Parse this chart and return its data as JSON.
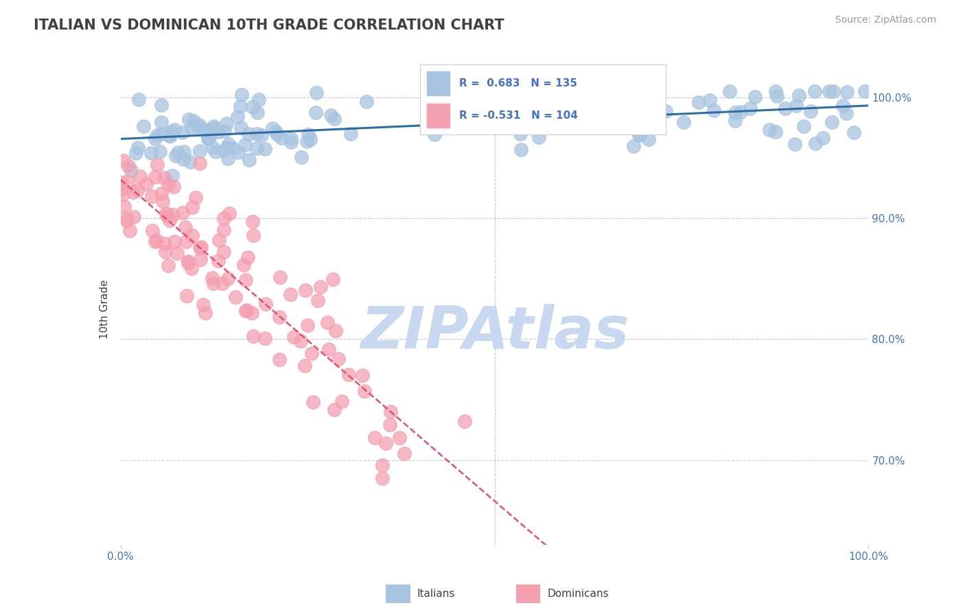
{
  "title": "ITALIAN VS DOMINICAN 10TH GRADE CORRELATION CHART",
  "source_text": "Source: ZipAtlas.com",
  "ylabel": "10th Grade",
  "italian_R": 0.683,
  "italian_N": 135,
  "dominican_R": -0.531,
  "dominican_N": 104,
  "italian_color": "#a8c4e0",
  "italian_line_color": "#2e6da4",
  "dominican_color": "#f4a0b0",
  "dominican_line_color": "#e05070",
  "background_color": "#ffffff",
  "title_color": "#404040",
  "axis_label_color": "#4472c4",
  "grid_color": "#c0c8d8",
  "watermark_color": "#c8d8f0",
  "watermark_text": "ZIPAtlas",
  "xlim": [
    0.0,
    1.0
  ],
  "ylim": [
    0.63,
    1.02
  ],
  "yticks": [
    0.7,
    0.8,
    0.9,
    1.0
  ],
  "ytick_labels": [
    "70.0%",
    "80.0%",
    "90.0%",
    "100.0%"
  ],
  "xtick_labels": [
    "0.0%",
    "100.0%"
  ],
  "xtick_vals": [
    0.0,
    1.0
  ],
  "legend_italian_label": "R =  0.683   N = 135",
  "legend_dominican_label": "R = -0.531   N = 104",
  "bottom_label_italians": "Italians",
  "bottom_label_dominicans": "Dominicans"
}
